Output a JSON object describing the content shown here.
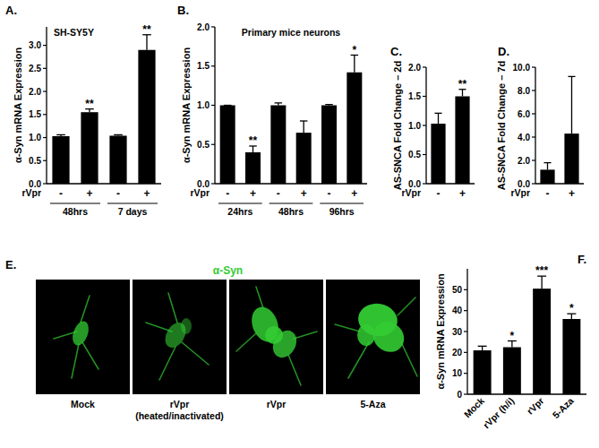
{
  "chart_data": [
    {
      "panel_label": "A.",
      "type": "bar",
      "title": "SH-SY5Y",
      "ylabel": "α-Syn mRNA Expression",
      "xlabel": "rVpr",
      "categories": [
        "-",
        "+",
        "-",
        "+"
      ],
      "groups": [
        "48hrs",
        "7 days"
      ],
      "values": [
        1.03,
        1.55,
        1.04,
        2.9
      ],
      "errors": [
        0.03,
        0.07,
        0.02,
        0.33
      ],
      "significance": [
        null,
        "**",
        null,
        "**"
      ],
      "color": "#000000",
      "ylim": [
        0,
        3.4
      ],
      "yticks": [
        {
          "value": 0,
          "label": "0.0"
        },
        {
          "value": 0.5,
          "label": "0.5"
        },
        {
          "value": 1,
          "label": "1.0"
        },
        {
          "value": 1.5,
          "label": "1.5"
        },
        {
          "value": 2,
          "label": "2.0"
        },
        {
          "value": 2.5,
          "label": "2.5"
        },
        {
          "value": 3,
          "label": "3.0"
        }
      ]
    },
    {
      "panel_label": "B.",
      "type": "bar",
      "title": "Primary mice neurons",
      "ylabel": "α-Syn mRNA Expression",
      "xlabel": "rVpr",
      "categories": [
        "-",
        "+",
        "-",
        "+",
        "-",
        "+"
      ],
      "groups": [
        "24hrs",
        "48hrs",
        "96hrs"
      ],
      "values": [
        1.0,
        0.4,
        1.0,
        0.65,
        1.0,
        1.42
      ],
      "errors": [
        0.0,
        0.08,
        0.03,
        0.15,
        0.01,
        0.22
      ],
      "significance": [
        null,
        "**",
        null,
        null,
        null,
        "*"
      ],
      "color": "#000000",
      "ylim": [
        0,
        2
      ],
      "yticks": [
        {
          "value": 0,
          "label": "0.0"
        },
        {
          "value": 0.5,
          "label": "0.5"
        },
        {
          "value": 1,
          "label": "1.0"
        },
        {
          "value": 1.5,
          "label": "1.5"
        },
        {
          "value": 2,
          "label": "2.0"
        }
      ]
    },
    {
      "panel_label": "C.",
      "type": "bar",
      "ylabel": "AS-SNCA Fold Change – 2d",
      "xlabel": "rVpr",
      "categories": [
        "-",
        "+"
      ],
      "values": [
        1.03,
        1.5
      ],
      "errors": [
        0.18,
        0.12
      ],
      "significance": [
        null,
        "**"
      ],
      "color": "#000000",
      "ylim": [
        0,
        2
      ],
      "yticks": [
        {
          "value": 0,
          "label": "0.0"
        },
        {
          "value": 0.5,
          "label": "0.5"
        },
        {
          "value": 1,
          "label": "1.0"
        },
        {
          "value": 1.5,
          "label": "1.5"
        },
        {
          "value": 2,
          "label": "2.0"
        }
      ]
    },
    {
      "panel_label": "D.",
      "type": "bar",
      "ylabel": "AS-SNCA Fold Change – 7d",
      "xlabel": "rVpr",
      "categories": [
        "-",
        "+"
      ],
      "values": [
        1.2,
        4.3
      ],
      "errors": [
        0.6,
        4.9
      ],
      "color": "#000000",
      "ylim": [
        0,
        10
      ],
      "yticks": [
        {
          "value": 0,
          "label": "0.0"
        },
        {
          "value": 2,
          "label": "2.0"
        },
        {
          "value": 4,
          "label": "4.0"
        },
        {
          "value": 6,
          "label": "6.0"
        },
        {
          "value": 8,
          "label": "8.0"
        },
        {
          "value": 10,
          "label": "10.0"
        }
      ]
    },
    {
      "panel_label": "E.",
      "type": "image",
      "title": "α-Syn",
      "color": "#33cc33",
      "categories": [
        "Mock",
        "rVpr (heated/inactivated)",
        "rVpr",
        "5-Aza"
      ]
    },
    {
      "panel_label": "F.",
      "type": "bar",
      "ylabel": "α-Syn mRNA Expression",
      "categories": [
        "Mock",
        "rVpr (h/i)",
        "rVpr",
        "5-Aza"
      ],
      "values": [
        21,
        22.5,
        50.5,
        36
      ],
      "errors": [
        2,
        3,
        6,
        2.5
      ],
      "significance": [
        null,
        "*",
        "***",
        "*"
      ],
      "color": "#000000",
      "ylim": [
        0,
        60
      ],
      "yticks": [
        0,
        10,
        20,
        30,
        40,
        50
      ]
    }
  ]
}
